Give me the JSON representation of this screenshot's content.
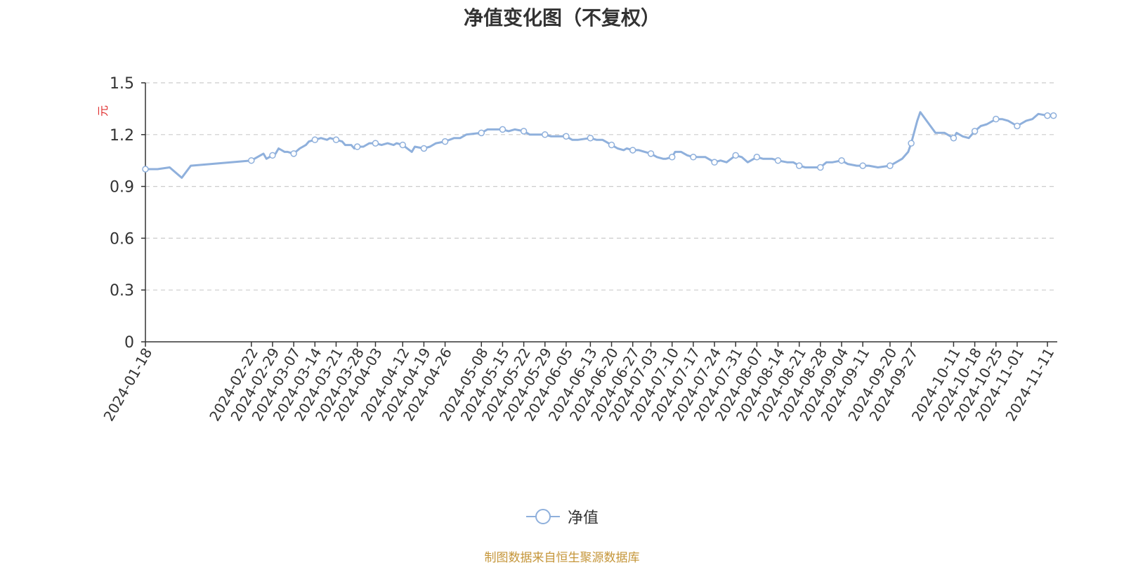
{
  "page_title": "净值变化图（不复权）",
  "source_note": "制图数据来自恒生聚源数据库",
  "colors": {
    "line": "#8fb0dc",
    "axis_unit": "#e03131",
    "grid": "#cccccc",
    "axis": "#333333",
    "source_text": "#c5963a"
  },
  "chart_data": {
    "type": "line",
    "title": "净值变化图（不复权）",
    "ylabel": "元",
    "xlabel": "",
    "ylim": [
      0,
      1.5
    ],
    "yticks": [
      "0",
      "0.3",
      "0.6",
      "0.9",
      "1.2",
      "1.5"
    ],
    "grid": true,
    "legend_position": "bottom-center",
    "x_tick_labels": [
      "2024-01-18",
      "2024-02-22",
      "2024-02-29",
      "2024-03-07",
      "2024-03-14",
      "2024-03-21",
      "2024-03-28",
      "2024-04-03",
      "2024-04-12",
      "2024-04-19",
      "2024-04-26",
      "2024-05-08",
      "2024-05-15",
      "2024-05-22",
      "2024-05-29",
      "2024-06-05",
      "2024-06-13",
      "2024-06-20",
      "2024-06-27",
      "2024-07-03",
      "2024-07-10",
      "2024-07-17",
      "2024-07-24",
      "2024-07-31",
      "2024-08-07",
      "2024-08-14",
      "2024-08-21",
      "2024-08-28",
      "2024-09-04",
      "2024-09-11",
      "2024-09-20",
      "2024-09-27",
      "2024-10-11",
      "2024-10-18",
      "2024-10-25",
      "2024-11-01",
      "2024-11-11"
    ],
    "series": [
      {
        "name": "净值",
        "points": [
          [
            "2024-01-18",
            1.0
          ],
          [
            "2024-01-22",
            1.0
          ],
          [
            "2024-01-26",
            1.01
          ],
          [
            "2024-01-30",
            0.95
          ],
          [
            "2024-02-02",
            1.02
          ],
          [
            "2024-02-22",
            1.05
          ],
          [
            "2024-02-24",
            1.07
          ],
          [
            "2024-02-26",
            1.09
          ],
          [
            "2024-02-27",
            1.06
          ],
          [
            "2024-02-29",
            1.08
          ],
          [
            "2024-03-01",
            1.09
          ],
          [
            "2024-03-02",
            1.12
          ],
          [
            "2024-03-04",
            1.1
          ],
          [
            "2024-03-05",
            1.1
          ],
          [
            "2024-03-07",
            1.09
          ],
          [
            "2024-03-09",
            1.12
          ],
          [
            "2024-03-11",
            1.14
          ],
          [
            "2024-03-12",
            1.16
          ],
          [
            "2024-03-14",
            1.17
          ],
          [
            "2024-03-16",
            1.18
          ],
          [
            "2024-03-18",
            1.17
          ],
          [
            "2024-03-19",
            1.18
          ],
          [
            "2024-03-21",
            1.17
          ],
          [
            "2024-03-23",
            1.16
          ],
          [
            "2024-03-24",
            1.14
          ],
          [
            "2024-03-26",
            1.14
          ],
          [
            "2024-03-27",
            1.12
          ],
          [
            "2024-03-28",
            1.13
          ],
          [
            "2024-03-30",
            1.13
          ],
          [
            "2024-04-01",
            1.15
          ],
          [
            "2024-04-03",
            1.15
          ],
          [
            "2024-04-05",
            1.14
          ],
          [
            "2024-04-07",
            1.15
          ],
          [
            "2024-04-09",
            1.14
          ],
          [
            "2024-04-10",
            1.15
          ],
          [
            "2024-04-12",
            1.14
          ],
          [
            "2024-04-15",
            1.1
          ],
          [
            "2024-04-16",
            1.13
          ],
          [
            "2024-04-19",
            1.12
          ],
          [
            "2024-04-21",
            1.13
          ],
          [
            "2024-04-23",
            1.15
          ],
          [
            "2024-04-26",
            1.16
          ],
          [
            "2024-04-29",
            1.18
          ],
          [
            "2024-05-01",
            1.18
          ],
          [
            "2024-05-03",
            1.2
          ],
          [
            "2024-05-08",
            1.21
          ],
          [
            "2024-05-10",
            1.23
          ],
          [
            "2024-05-12",
            1.23
          ],
          [
            "2024-05-14",
            1.23
          ],
          [
            "2024-05-15",
            1.23
          ],
          [
            "2024-05-17",
            1.22
          ],
          [
            "2024-05-19",
            1.23
          ],
          [
            "2024-05-22",
            1.22
          ],
          [
            "2024-05-24",
            1.2
          ],
          [
            "2024-05-26",
            1.2
          ],
          [
            "2024-05-29",
            1.2
          ],
          [
            "2024-05-31",
            1.19
          ],
          [
            "2024-06-01",
            1.19
          ],
          [
            "2024-06-03",
            1.19
          ],
          [
            "2024-06-05",
            1.19
          ],
          [
            "2024-06-07",
            1.17
          ],
          [
            "2024-06-09",
            1.17
          ],
          [
            "2024-06-13",
            1.18
          ],
          [
            "2024-06-15",
            1.17
          ],
          [
            "2024-06-17",
            1.17
          ],
          [
            "2024-06-18",
            1.16
          ],
          [
            "2024-06-20",
            1.14
          ],
          [
            "2024-06-22",
            1.12
          ],
          [
            "2024-06-24",
            1.11
          ],
          [
            "2024-06-25",
            1.12
          ],
          [
            "2024-06-27",
            1.11
          ],
          [
            "2024-06-29",
            1.11
          ],
          [
            "2024-07-01",
            1.1
          ],
          [
            "2024-07-03",
            1.09
          ],
          [
            "2024-07-05",
            1.07
          ],
          [
            "2024-07-07",
            1.06
          ],
          [
            "2024-07-08",
            1.06
          ],
          [
            "2024-07-10",
            1.07
          ],
          [
            "2024-07-11",
            1.1
          ],
          [
            "2024-07-13",
            1.1
          ],
          [
            "2024-07-15",
            1.08
          ],
          [
            "2024-07-17",
            1.07
          ],
          [
            "2024-07-19",
            1.07
          ],
          [
            "2024-07-21",
            1.07
          ],
          [
            "2024-07-24",
            1.04
          ],
          [
            "2024-07-26",
            1.05
          ],
          [
            "2024-07-28",
            1.04
          ],
          [
            "2024-07-31",
            1.08
          ],
          [
            "2024-08-02",
            1.07
          ],
          [
            "2024-08-04",
            1.04
          ],
          [
            "2024-08-07",
            1.07
          ],
          [
            "2024-08-09",
            1.06
          ],
          [
            "2024-08-12",
            1.06
          ],
          [
            "2024-08-14",
            1.05
          ],
          [
            "2024-08-17",
            1.04
          ],
          [
            "2024-08-19",
            1.04
          ],
          [
            "2024-08-21",
            1.02
          ],
          [
            "2024-08-23",
            1.01
          ],
          [
            "2024-08-25",
            1.01
          ],
          [
            "2024-08-28",
            1.01
          ],
          [
            "2024-08-30",
            1.04
          ],
          [
            "2024-09-01",
            1.04
          ],
          [
            "2024-09-04",
            1.05
          ],
          [
            "2024-09-06",
            1.03
          ],
          [
            "2024-09-09",
            1.02
          ],
          [
            "2024-09-11",
            1.02
          ],
          [
            "2024-09-13",
            1.02
          ],
          [
            "2024-09-16",
            1.01
          ],
          [
            "2024-09-20",
            1.02
          ],
          [
            "2024-09-22",
            1.04
          ],
          [
            "2024-09-24",
            1.06
          ],
          [
            "2024-09-26",
            1.1
          ],
          [
            "2024-09-27",
            1.15
          ],
          [
            "2024-09-29",
            1.28
          ],
          [
            "2024-09-30",
            1.33
          ],
          [
            "2024-10-05",
            1.21
          ],
          [
            "2024-10-08",
            1.21
          ],
          [
            "2024-10-11",
            1.18
          ],
          [
            "2024-10-12",
            1.21
          ],
          [
            "2024-10-14",
            1.19
          ],
          [
            "2024-10-16",
            1.18
          ],
          [
            "2024-10-18",
            1.22
          ],
          [
            "2024-10-20",
            1.25
          ],
          [
            "2024-10-22",
            1.26
          ],
          [
            "2024-10-25",
            1.29
          ],
          [
            "2024-10-27",
            1.29
          ],
          [
            "2024-10-29",
            1.28
          ],
          [
            "2024-11-01",
            1.25
          ],
          [
            "2024-11-04",
            1.28
          ],
          [
            "2024-11-06",
            1.29
          ],
          [
            "2024-11-08",
            1.32
          ],
          [
            "2024-11-11",
            1.31
          ],
          [
            "2024-11-13",
            1.31
          ]
        ],
        "marker_dates": [
          "2024-01-18",
          "2024-02-22",
          "2024-02-29",
          "2024-03-07",
          "2024-03-14",
          "2024-03-21",
          "2024-03-28",
          "2024-04-03",
          "2024-04-12",
          "2024-04-19",
          "2024-04-26",
          "2024-05-08",
          "2024-05-15",
          "2024-05-22",
          "2024-05-29",
          "2024-06-05",
          "2024-06-13",
          "2024-06-20",
          "2024-06-27",
          "2024-07-03",
          "2024-07-10",
          "2024-07-17",
          "2024-07-24",
          "2024-07-31",
          "2024-08-07",
          "2024-08-14",
          "2024-08-21",
          "2024-08-28",
          "2024-09-04",
          "2024-09-11",
          "2024-09-20",
          "2024-09-27",
          "2024-10-11",
          "2024-10-18",
          "2024-10-25",
          "2024-11-01",
          "2024-11-11",
          "2024-11-13"
        ]
      }
    ]
  },
  "legend": {
    "label": "净值",
    "icon": "circle-line-marker"
  }
}
